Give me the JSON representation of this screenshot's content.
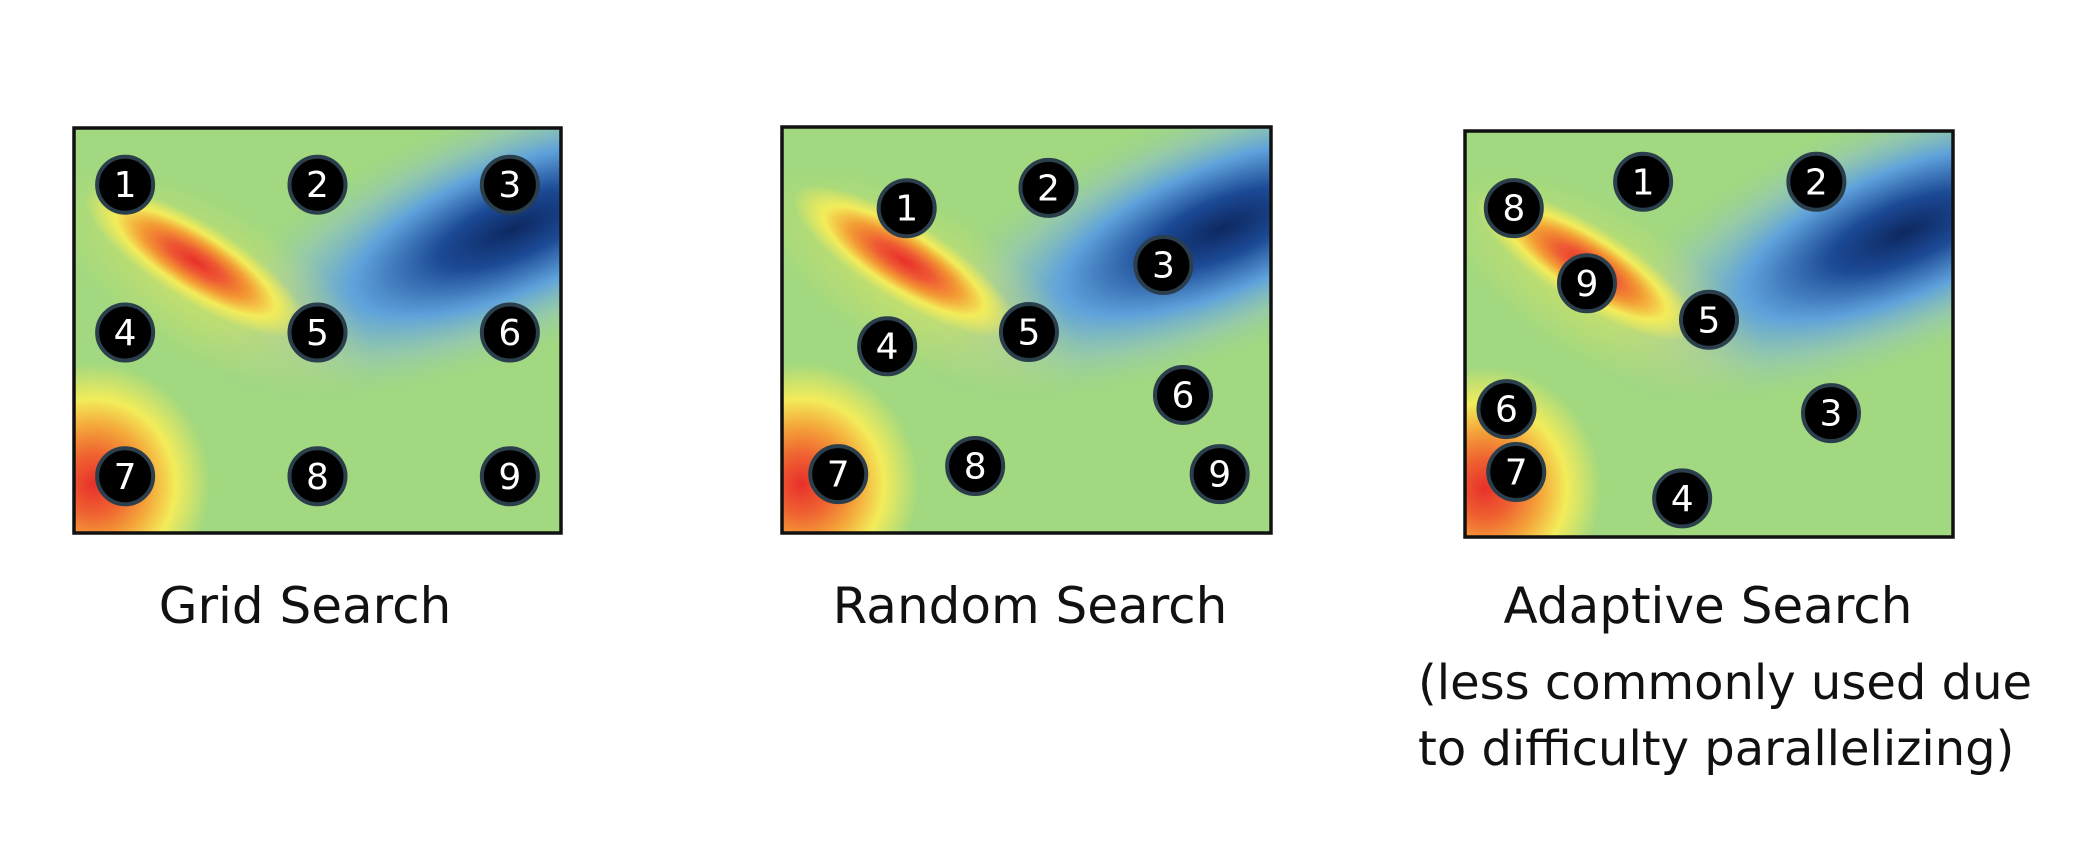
{
  "panels": [
    {
      "id": "grid",
      "title": "Grid Search",
      "points": [
        {
          "label": "1",
          "u": 0.105,
          "v": 0.14
        },
        {
          "label": "2",
          "u": 0.5,
          "v": 0.14
        },
        {
          "label": "3",
          "u": 0.895,
          "v": 0.14
        },
        {
          "label": "4",
          "u": 0.105,
          "v": 0.505
        },
        {
          "label": "5",
          "u": 0.5,
          "v": 0.505
        },
        {
          "label": "6",
          "u": 0.895,
          "v": 0.505
        },
        {
          "label": "7",
          "u": 0.105,
          "v": 0.86
        },
        {
          "label": "8",
          "u": 0.5,
          "v": 0.86
        },
        {
          "label": "9",
          "u": 0.895,
          "v": 0.86
        }
      ]
    },
    {
      "id": "random",
      "title": "Random Search",
      "points": [
        {
          "label": "1",
          "u": 0.255,
          "v": 0.2
        },
        {
          "label": "2",
          "u": 0.545,
          "v": 0.15
        },
        {
          "label": "3",
          "u": 0.78,
          "v": 0.34
        },
        {
          "label": "4",
          "u": 0.215,
          "v": 0.54
        },
        {
          "label": "5",
          "u": 0.505,
          "v": 0.505
        },
        {
          "label": "6",
          "u": 0.82,
          "v": 0.66
        },
        {
          "label": "7",
          "u": 0.115,
          "v": 0.855
        },
        {
          "label": "8",
          "u": 0.395,
          "v": 0.835
        },
        {
          "label": "9",
          "u": 0.895,
          "v": 0.855
        }
      ]
    },
    {
      "id": "adaptive",
      "title": "Adaptive Search",
      "points": [
        {
          "label": "1",
          "u": 0.365,
          "v": 0.125
        },
        {
          "label": "2",
          "u": 0.72,
          "v": 0.125
        },
        {
          "label": "3",
          "u": 0.75,
          "v": 0.695
        },
        {
          "label": "4",
          "u": 0.445,
          "v": 0.905
        },
        {
          "label": "5",
          "u": 0.5,
          "v": 0.465
        },
        {
          "label": "6",
          "u": 0.085,
          "v": 0.685
        },
        {
          "label": "7",
          "u": 0.105,
          "v": 0.84
        },
        {
          "label": "8",
          "u": 0.1,
          "v": 0.19
        },
        {
          "label": "9",
          "u": 0.25,
          "v": 0.375
        }
      ]
    }
  ],
  "adaptive_note": {
    "line1": "(less commonly used due",
    "line2": "to difficulty parallelizing)"
  },
  "colors": {
    "surface_base": "#a1d880",
    "low_value_blue": "#0d2860",
    "mid_blue": "#5b9fe0",
    "peak_red": "#e8302a",
    "peak_orange": "#f39a33",
    "peak_yellow": "#f3ec5a",
    "marker_fill": "#000000",
    "marker_ring": "#2b3e4b",
    "marker_text": "#ffffff",
    "frame": "#111111"
  }
}
